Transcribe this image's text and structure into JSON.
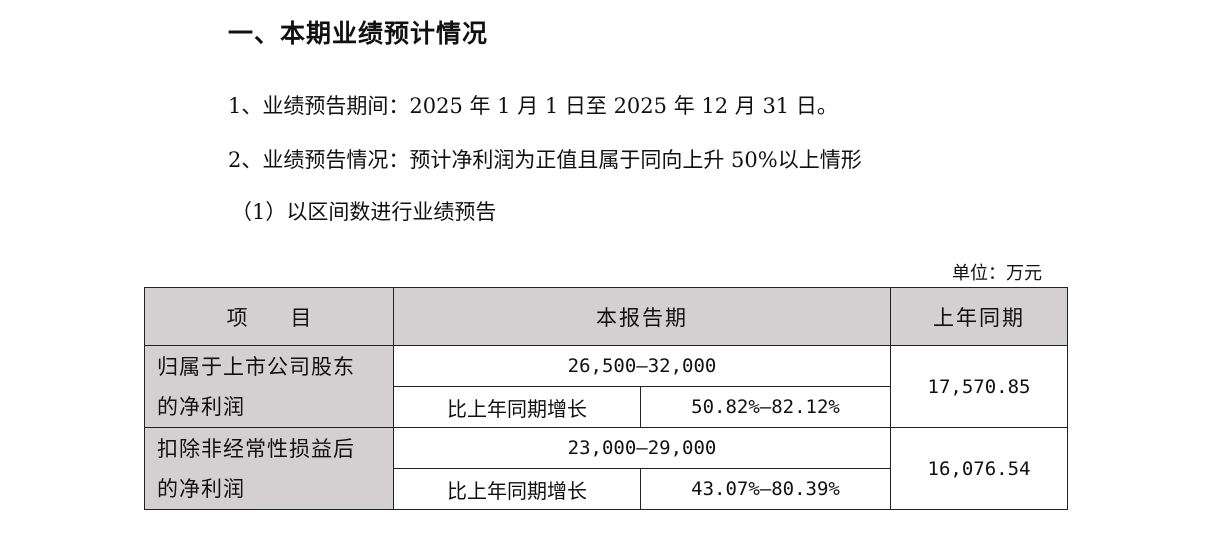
{
  "section": {
    "heading": "一、本期业绩预计情况",
    "items": [
      "1、业绩预告期间：2025 年 1 月 1 日至 2025 年 12 月 31 日。",
      "2、业绩预告情况：预计净利润为正值且属于同向上升 50%以上情形",
      "（1）以区间数进行业绩预告"
    ]
  },
  "table": {
    "unit": "单位：万元",
    "headers": {
      "item": "项 目",
      "current_period": "本报告期",
      "prior_period": "上年同期"
    },
    "rows": [
      {
        "label_line1": "归属于上市公司股东",
        "label_line2": "的净利润",
        "range": "26,500–32,000",
        "growth_label": "比上年同期增长",
        "growth_value": "50.82%–82.12%",
        "prior_value": "17,570.85"
      },
      {
        "label_line1": "扣除非经常性损益后",
        "label_line2": "的净利润",
        "range": "23,000–29,000",
        "growth_label": "比上年同期增长",
        "growth_value": "43.07%–80.39%",
        "prior_value": "16,076.54"
      }
    ]
  }
}
